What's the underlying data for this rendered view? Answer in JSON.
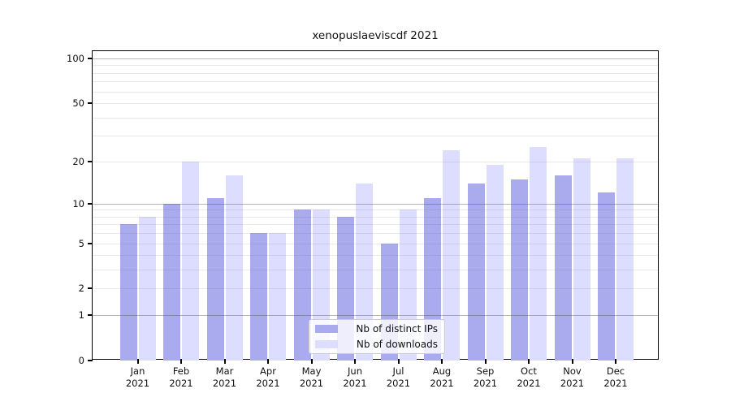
{
  "chart_data": {
    "type": "bar",
    "title": "xenopuslaeviscdf 2021",
    "xlabel": "",
    "ylabel": "",
    "yscale": "log1p",
    "ylim": [
      0,
      112
    ],
    "yticks": [
      0,
      1,
      2,
      5,
      10,
      20,
      50,
      100
    ],
    "grid": true,
    "grid_lines": {
      "strong": [
        1,
        10,
        100
      ],
      "weak": [
        2,
        3,
        4,
        5,
        6,
        7,
        8,
        9,
        20,
        30,
        40,
        50,
        60,
        70,
        80,
        90
      ]
    },
    "categories": [
      "Jan",
      "Feb",
      "Mar",
      "Apr",
      "May",
      "Jun",
      "Jul",
      "Aug",
      "Sep",
      "Oct",
      "Nov",
      "Dec"
    ],
    "year_label": "2021",
    "series": [
      {
        "name": "Nb of distinct IPs",
        "color": "#aaaaee",
        "values": [
          7,
          10,
          11,
          6,
          9,
          8,
          5,
          11,
          14,
          15,
          16,
          12
        ]
      },
      {
        "name": "Nb of downloads",
        "color": "#ddddff",
        "values": [
          8,
          20,
          16,
          6,
          9,
          14,
          9,
          24,
          19,
          25,
          21,
          21
        ]
      }
    ],
    "legend_position": "inside-bottom-center"
  }
}
